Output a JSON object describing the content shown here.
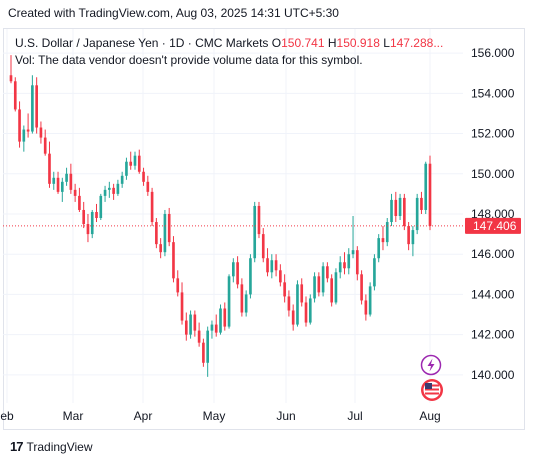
{
  "header": {
    "caption": "Created with TradingView.com, Aug 03, 2025 14:31 UTC+5:30"
  },
  "legend": {
    "symbol": "U.S. Dollar / Japanese Yen · 1D · CMC Markets",
    "o_label": "O",
    "o_value": "150.741",
    "h_label": "H",
    "h_value": "150.918",
    "l_label": "L",
    "l_value": "147.288",
    "ellipsis": "...",
    "vol": "Vol: The data vendor doesn't provide volume data for this symbol."
  },
  "footer": {
    "brand": "TradingView"
  },
  "colors": {
    "up": "#26a69a",
    "down": "#f23645",
    "grid": "#f0f3fa",
    "last_price_line": "#f23645",
    "icon_purple": "#9c27b0"
  },
  "icons": [
    "lightning-icon",
    "us-flag-icon",
    "tradingview-logo-icon"
  ],
  "chart_data": {
    "type": "candlestick",
    "title": "U.S. Dollar / Japanese Yen · 1D · CMC Markets",
    "ylim": [
      138.6,
      157.2
    ],
    "y_ticks": [
      "156.000",
      "154.000",
      "152.000",
      "150.000",
      "148.000",
      "146.000",
      "144.000",
      "142.000",
      "140.000"
    ],
    "x_ticks": [
      "eb",
      "Mar",
      "Apr",
      "May",
      "Jun",
      "Jul",
      "Aug"
    ],
    "last_price": "147.406",
    "grid": true,
    "candles": [
      {
        "o": 154.9,
        "h": 155.9,
        "l": 154.5,
        "c": 154.6
      },
      {
        "o": 154.6,
        "h": 154.8,
        "l": 153.1,
        "c": 153.2
      },
      {
        "o": 153.2,
        "h": 153.6,
        "l": 151.3,
        "c": 151.6
      },
      {
        "o": 151.6,
        "h": 152.4,
        "l": 151.1,
        "c": 152.2
      },
      {
        "o": 152.2,
        "h": 153.0,
        "l": 151.8,
        "c": 152.1
      },
      {
        "o": 152.1,
        "h": 154.9,
        "l": 152.0,
        "c": 154.4
      },
      {
        "o": 154.4,
        "h": 154.8,
        "l": 152.0,
        "c": 152.3
      },
      {
        "o": 152.3,
        "h": 152.6,
        "l": 151.5,
        "c": 151.8
      },
      {
        "o": 151.8,
        "h": 152.2,
        "l": 150.9,
        "c": 151.0
      },
      {
        "o": 151.0,
        "h": 151.6,
        "l": 149.3,
        "c": 149.5
      },
      {
        "o": 149.5,
        "h": 150.1,
        "l": 149.2,
        "c": 149.8
      },
      {
        "o": 149.8,
        "h": 150.1,
        "l": 149.0,
        "c": 149.1
      },
      {
        "o": 149.1,
        "h": 149.8,
        "l": 148.6,
        "c": 149.6
      },
      {
        "o": 149.6,
        "h": 150.3,
        "l": 149.4,
        "c": 150.0
      },
      {
        "o": 150.0,
        "h": 150.5,
        "l": 149.0,
        "c": 149.2
      },
      {
        "o": 149.2,
        "h": 149.5,
        "l": 148.6,
        "c": 148.9
      },
      {
        "o": 148.9,
        "h": 149.3,
        "l": 148.1,
        "c": 148.2
      },
      {
        "o": 148.2,
        "h": 148.6,
        "l": 147.3,
        "c": 147.5
      },
      {
        "o": 147.5,
        "h": 148.0,
        "l": 146.6,
        "c": 147.0
      },
      {
        "o": 147.0,
        "h": 148.2,
        "l": 146.8,
        "c": 148.1
      },
      {
        "o": 148.1,
        "h": 148.5,
        "l": 147.6,
        "c": 147.8
      },
      {
        "o": 147.8,
        "h": 149.0,
        "l": 147.7,
        "c": 148.9
      },
      {
        "o": 148.9,
        "h": 149.4,
        "l": 148.6,
        "c": 149.2
      },
      {
        "o": 149.2,
        "h": 149.6,
        "l": 148.8,
        "c": 149.3
      },
      {
        "o": 149.3,
        "h": 149.5,
        "l": 148.7,
        "c": 149.0
      },
      {
        "o": 149.0,
        "h": 149.7,
        "l": 148.9,
        "c": 149.5
      },
      {
        "o": 149.5,
        "h": 150.1,
        "l": 149.3,
        "c": 149.9
      },
      {
        "o": 149.9,
        "h": 150.8,
        "l": 149.7,
        "c": 150.6
      },
      {
        "o": 150.6,
        "h": 151.1,
        "l": 150.2,
        "c": 150.4
      },
      {
        "o": 150.4,
        "h": 151.1,
        "l": 150.2,
        "c": 150.9
      },
      {
        "o": 150.9,
        "h": 151.2,
        "l": 150.0,
        "c": 150.1
      },
      {
        "o": 150.1,
        "h": 150.3,
        "l": 149.4,
        "c": 149.6
      },
      {
        "o": 149.6,
        "h": 149.9,
        "l": 148.9,
        "c": 149.1
      },
      {
        "o": 149.1,
        "h": 149.3,
        "l": 147.4,
        "c": 147.6
      },
      {
        "o": 147.6,
        "h": 147.8,
        "l": 146.3,
        "c": 146.5
      },
      {
        "o": 146.5,
        "h": 146.8,
        "l": 145.8,
        "c": 146.1
      },
      {
        "o": 146.1,
        "h": 148.2,
        "l": 145.9,
        "c": 148.0
      },
      {
        "o": 148.0,
        "h": 148.3,
        "l": 146.4,
        "c": 146.6
      },
      {
        "o": 146.6,
        "h": 146.9,
        "l": 144.6,
        "c": 144.8
      },
      {
        "o": 144.8,
        "h": 145.2,
        "l": 143.9,
        "c": 144.1
      },
      {
        "o": 144.1,
        "h": 144.6,
        "l": 142.5,
        "c": 142.7
      },
      {
        "o": 142.7,
        "h": 143.1,
        "l": 141.7,
        "c": 142.0
      },
      {
        "o": 142.0,
        "h": 143.2,
        "l": 141.8,
        "c": 143.0
      },
      {
        "o": 143.0,
        "h": 143.2,
        "l": 141.9,
        "c": 142.2
      },
      {
        "o": 142.2,
        "h": 142.6,
        "l": 141.4,
        "c": 141.6
      },
      {
        "o": 141.6,
        "h": 141.8,
        "l": 140.4,
        "c": 140.6
      },
      {
        "o": 140.6,
        "h": 142.4,
        "l": 139.9,
        "c": 142.2
      },
      {
        "o": 142.2,
        "h": 142.7,
        "l": 141.8,
        "c": 142.5
      },
      {
        "o": 142.5,
        "h": 143.0,
        "l": 141.9,
        "c": 142.1
      },
      {
        "o": 142.1,
        "h": 143.5,
        "l": 142.0,
        "c": 143.3
      },
      {
        "o": 143.3,
        "h": 143.6,
        "l": 142.2,
        "c": 142.4
      },
      {
        "o": 142.4,
        "h": 145.0,
        "l": 142.3,
        "c": 144.9
      },
      {
        "o": 144.9,
        "h": 145.8,
        "l": 144.6,
        "c": 145.6
      },
      {
        "o": 145.6,
        "h": 145.9,
        "l": 144.3,
        "c": 144.5
      },
      {
        "o": 144.5,
        "h": 144.8,
        "l": 142.9,
        "c": 143.1
      },
      {
        "o": 143.1,
        "h": 144.2,
        "l": 142.9,
        "c": 144.0
      },
      {
        "o": 144.0,
        "h": 146.0,
        "l": 143.8,
        "c": 145.8
      },
      {
        "o": 145.8,
        "h": 148.6,
        "l": 145.6,
        "c": 148.4
      },
      {
        "o": 148.4,
        "h": 148.6,
        "l": 146.8,
        "c": 147.0
      },
      {
        "o": 147.0,
        "h": 147.3,
        "l": 145.6,
        "c": 145.8
      },
      {
        "o": 145.8,
        "h": 146.3,
        "l": 144.9,
        "c": 145.1
      },
      {
        "o": 145.1,
        "h": 146.0,
        "l": 144.8,
        "c": 145.7
      },
      {
        "o": 145.7,
        "h": 146.0,
        "l": 144.9,
        "c": 145.2
      },
      {
        "o": 145.2,
        "h": 145.5,
        "l": 144.4,
        "c": 144.6
      },
      {
        "o": 144.6,
        "h": 145.0,
        "l": 143.6,
        "c": 143.9
      },
      {
        "o": 143.9,
        "h": 144.2,
        "l": 142.9,
        "c": 143.2
      },
      {
        "o": 143.2,
        "h": 143.5,
        "l": 142.2,
        "c": 142.5
      },
      {
        "o": 142.5,
        "h": 144.7,
        "l": 142.4,
        "c": 144.5
      },
      {
        "o": 144.5,
        "h": 144.8,
        "l": 143.4,
        "c": 143.6
      },
      {
        "o": 143.6,
        "h": 143.9,
        "l": 142.4,
        "c": 142.6
      },
      {
        "o": 142.6,
        "h": 144.0,
        "l": 142.5,
        "c": 143.8
      },
      {
        "o": 143.8,
        "h": 145.1,
        "l": 143.6,
        "c": 144.9
      },
      {
        "o": 144.9,
        "h": 145.1,
        "l": 143.9,
        "c": 144.1
      },
      {
        "o": 144.1,
        "h": 145.6,
        "l": 143.9,
        "c": 145.4
      },
      {
        "o": 145.4,
        "h": 145.6,
        "l": 144.6,
        "c": 144.8
      },
      {
        "o": 144.8,
        "h": 145.0,
        "l": 143.4,
        "c": 143.6
      },
      {
        "o": 143.6,
        "h": 145.3,
        "l": 143.5,
        "c": 145.1
      },
      {
        "o": 145.1,
        "h": 145.9,
        "l": 144.8,
        "c": 145.6
      },
      {
        "o": 145.6,
        "h": 146.1,
        "l": 145.0,
        "c": 145.3
      },
      {
        "o": 145.3,
        "h": 146.3,
        "l": 145.0,
        "c": 146.0
      },
      {
        "o": 146.0,
        "h": 147.9,
        "l": 145.8,
        "c": 146.2
      },
      {
        "o": 146.2,
        "h": 146.4,
        "l": 144.7,
        "c": 145.0
      },
      {
        "o": 145.0,
        "h": 145.2,
        "l": 143.5,
        "c": 143.7
      },
      {
        "o": 143.7,
        "h": 144.0,
        "l": 142.7,
        "c": 143.0
      },
      {
        "o": 143.0,
        "h": 144.6,
        "l": 142.9,
        "c": 144.4
      },
      {
        "o": 144.4,
        "h": 146.0,
        "l": 144.2,
        "c": 145.8
      },
      {
        "o": 145.8,
        "h": 147.0,
        "l": 145.6,
        "c": 146.8
      },
      {
        "o": 146.8,
        "h": 147.4,
        "l": 146.2,
        "c": 146.6
      },
      {
        "o": 146.6,
        "h": 147.8,
        "l": 146.4,
        "c": 147.6
      },
      {
        "o": 147.6,
        "h": 149.0,
        "l": 147.4,
        "c": 148.7
      },
      {
        "o": 148.7,
        "h": 149.1,
        "l": 147.6,
        "c": 147.9
      },
      {
        "o": 147.9,
        "h": 149.0,
        "l": 147.7,
        "c": 148.8
      },
      {
        "o": 148.8,
        "h": 149.0,
        "l": 147.2,
        "c": 147.4
      },
      {
        "o": 147.4,
        "h": 147.6,
        "l": 146.2,
        "c": 146.5
      },
      {
        "o": 146.5,
        "h": 147.4,
        "l": 145.9,
        "c": 147.2
      },
      {
        "o": 147.2,
        "h": 149.0,
        "l": 147.0,
        "c": 148.8
      },
      {
        "o": 148.8,
        "h": 149.1,
        "l": 148.0,
        "c": 148.2
      },
      {
        "o": 148.2,
        "h": 150.6,
        "l": 148.0,
        "c": 150.5
      },
      {
        "o": 150.5,
        "h": 150.9,
        "l": 147.2,
        "c": 147.4
      }
    ]
  }
}
